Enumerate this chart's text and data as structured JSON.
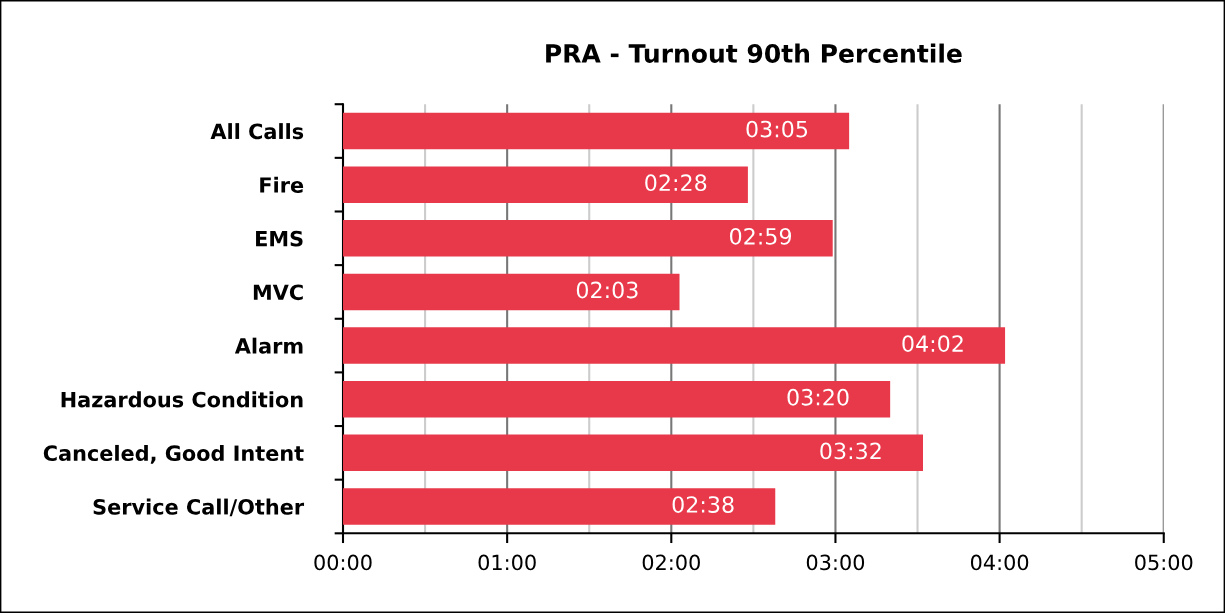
{
  "chart_data": {
    "type": "bar",
    "orientation": "horizontal",
    "title": "PRA - Turnout 90th Percentile",
    "categories": [
      "All Calls",
      "Fire",
      "EMS",
      "MVC",
      "Alarm",
      "Hazardous Condition",
      "Canceled, Good Intent",
      "Service Call/Other"
    ],
    "values": [
      185,
      148,
      179,
      123,
      242,
      200,
      212,
      158
    ],
    "value_labels": [
      "03:05",
      "02:28",
      "02:59",
      "02:03",
      "04:02",
      "03:20",
      "03:32",
      "02:38"
    ],
    "color": "#e8394a",
    "xlim": [
      0,
      300
    ],
    "xticks": [
      {
        "value": 0,
        "label": "00:00"
      },
      {
        "value": 30,
        "label": null
      },
      {
        "value": 60,
        "label": "01:00"
      },
      {
        "value": 90,
        "label": null
      },
      {
        "value": 120,
        "label": "02:00"
      },
      {
        "value": 150,
        "label": null
      },
      {
        "value": 180,
        "label": "03:00"
      },
      {
        "value": 210,
        "label": null
      },
      {
        "value": 240,
        "label": "04:00"
      },
      {
        "value": 270,
        "label": null
      },
      {
        "value": 300,
        "label": "05:00"
      }
    ],
    "grid": "x",
    "legend": false
  }
}
